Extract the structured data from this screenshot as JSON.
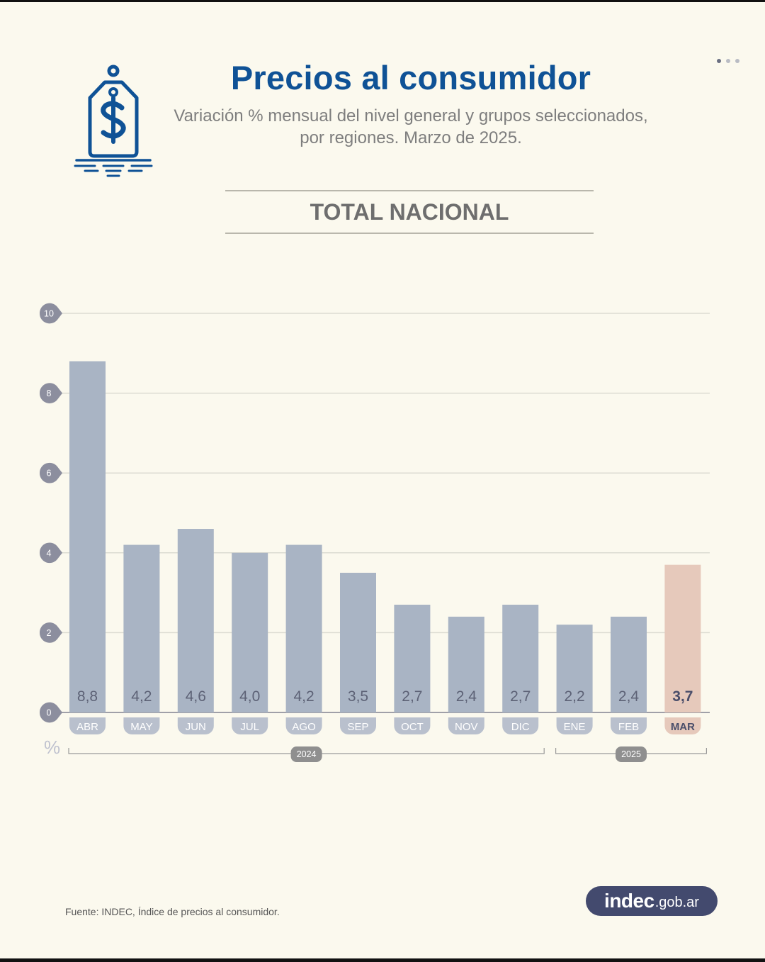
{
  "header": {
    "title": "Precios al consumidor",
    "subtitle_line1": "Variación % mensual del nivel general y grupos seleccionados,",
    "subtitle_line2": "por regiones. Marzo de 2025.",
    "section_title": "TOTAL NACIONAL"
  },
  "footer": {
    "source": "Fuente: INDEC, Índice de precios al consumidor.",
    "logo_main": "indec",
    "logo_suffix": ".gob.ar"
  },
  "icons": {
    "price_tag": "price-tag-dollar-icon",
    "pager": "pager-dots-icon"
  },
  "colors": {
    "title": "#0f5296",
    "bar": "#a9b4c4",
    "bar_highlight": "#e6c9bb",
    "label_pill": "#b9c0cd",
    "axis_marker": "#8c8e9e",
    "year_pill": "#8f8f8f"
  },
  "chart_data": {
    "type": "bar",
    "unit_label": "%",
    "categories": [
      "ABR",
      "MAY",
      "JUN",
      "JUL",
      "AGO",
      "SEP",
      "OCT",
      "NOV",
      "DIC",
      "ENE",
      "FEB",
      "MAR"
    ],
    "values": [
      8.8,
      4.2,
      4.6,
      4.0,
      4.2,
      3.5,
      2.7,
      2.4,
      2.7,
      2.2,
      2.4,
      3.7
    ],
    "value_labels": [
      "8,8",
      "4,2",
      "4,6",
      "4,0",
      "4,2",
      "3,5",
      "2,7",
      "2,4",
      "2,7",
      "2,2",
      "2,4",
      "3,7"
    ],
    "highlight_index": 11,
    "ylim": [
      0,
      10
    ],
    "yticks": [
      0,
      2,
      4,
      6,
      8,
      10
    ],
    "ytick_labels": [
      "0",
      "2",
      "4",
      "6",
      "8",
      "10"
    ],
    "grid": true,
    "year_groups": [
      {
        "label": "2024",
        "first": 0,
        "last": 8
      },
      {
        "label": "2025",
        "first": 9,
        "last": 11
      }
    ]
  }
}
